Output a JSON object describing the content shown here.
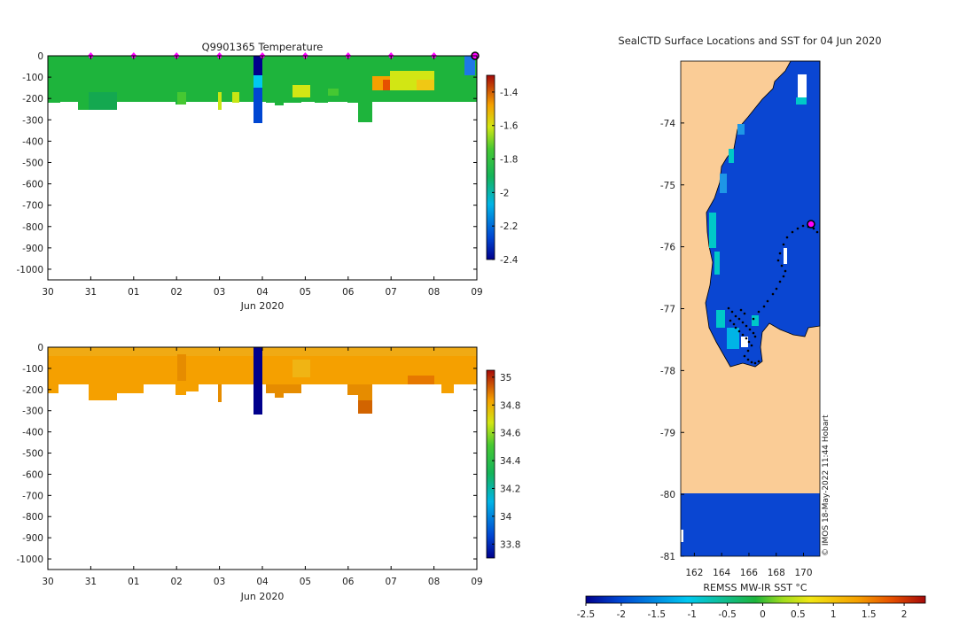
{
  "colors": {
    "land": "#facc96",
    "sea": "#0a46d2",
    "sea_light": "#1e78e6",
    "frame": "#000000",
    "marker": "#ff00ff",
    "temp_base": "#1eb43c",
    "sal_base": "#f5a000"
  },
  "chart_data": [
    {
      "type": "heatmap",
      "id": "temperature",
      "title": "Q9901365  Temperature",
      "xlabel": "Jun 2020",
      "ylabel": "",
      "x_ticks": [
        "30",
        "31",
        "01",
        "02",
        "03",
        "04",
        "05",
        "06",
        "07",
        "08",
        "09"
      ],
      "y_ticks": [
        "0",
        "-100",
        "-200",
        "-300",
        "-400",
        "-500",
        "-600",
        "-700",
        "-800",
        "-900",
        "-1000"
      ],
      "ylim": [
        -1050,
        0
      ],
      "colorbar": {
        "range": [
          -2.4,
          -1.3
        ],
        "ticks": [
          "-1.4",
          "-1.6",
          "-1.8",
          "-2",
          "-2.2",
          "-2.4"
        ]
      },
      "surface_marker_days": [
        1,
        2,
        3,
        4,
        5,
        6,
        7,
        8,
        9,
        10
      ],
      "profile_depth_approx": "0 to -320 m",
      "profile_value_range_approx": [
        -2.4,
        -1.5
      ]
    },
    {
      "type": "heatmap",
      "id": "salinity",
      "title": "",
      "xlabel": "Jun 2020",
      "ylabel": "",
      "x_ticks": [
        "30",
        "31",
        "01",
        "02",
        "03",
        "04",
        "05",
        "06",
        "07",
        "08",
        "09"
      ],
      "y_ticks": [
        "0",
        "-100",
        "-200",
        "-300",
        "-400",
        "-500",
        "-600",
        "-700",
        "-800",
        "-900",
        "-1000"
      ],
      "ylim": [
        -1050,
        0
      ],
      "colorbar": {
        "range": [
          33.7,
          35.05
        ],
        "ticks": [
          "35",
          "34.8",
          "34.6",
          "34.4",
          "34.2",
          "34",
          "33.8"
        ]
      },
      "profile_depth_approx": "0 to -320 m",
      "profile_value_range_approx": [
        33.7,
        34.9
      ]
    },
    {
      "type": "heatmap",
      "id": "sst-map",
      "title": "SealCTD Surface Locations and SST for 04 Jun 2020",
      "x_ticks": [
        "162",
        "164",
        "166",
        "168",
        "170"
      ],
      "y_ticks": [
        "-74",
        "-75",
        "-76",
        "-77",
        "-78",
        "-79",
        "-80",
        "-81"
      ],
      "xlim": [
        161,
        171.2
      ],
      "ylim": [
        -81,
        -73
      ],
      "colorbar": {
        "label": "REMSS MW-IR SST °C",
        "range": [
          -2.5,
          2.3
        ],
        "ticks": [
          "-2.5",
          "-2",
          "-1.5",
          "-1",
          "-0.5",
          "0",
          "0.5",
          "1",
          "1.5",
          "2"
        ]
      },
      "credit": "© IMOS 18-May-2022 11:44 Hobart"
    }
  ]
}
